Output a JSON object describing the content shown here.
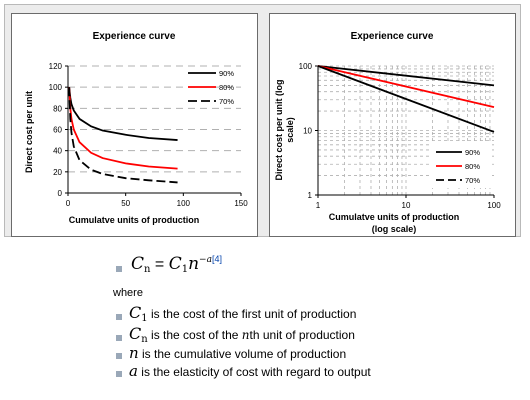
{
  "chart_data": [
    {
      "type": "line",
      "title": "Experience curve",
      "xlabel": "Cumulatve units of production",
      "ylabel": "Direct cost per unit",
      "xlim": [
        0,
        150
      ],
      "ylim": [
        0,
        120
      ],
      "x_ticks": [
        "0",
        "50",
        "100",
        "150"
      ],
      "y_ticks": [
        "0",
        "20",
        "40",
        "60",
        "80",
        "100",
        "120"
      ],
      "grid": "horizontal dashed",
      "legend_position": "top-right",
      "series": [
        {
          "name": "90%",
          "color": "#000000",
          "dash": "solid",
          "x": [
            1,
            2,
            3,
            5,
            10,
            20,
            30,
            50,
            70,
            95
          ],
          "y": [
            100,
            90,
            84,
            78,
            70,
            63,
            59,
            55,
            52,
            50
          ]
        },
        {
          "name": "80%",
          "color": "#ff0000",
          "dash": "solid",
          "x": [
            1,
            2,
            3,
            5,
            10,
            20,
            30,
            50,
            70,
            95
          ],
          "y": [
            100,
            80,
            70,
            60,
            48,
            38,
            33,
            28,
            25,
            23
          ]
        },
        {
          "name": "70%",
          "color": "#000000",
          "dash": "long-dash",
          "x": [
            1,
            2,
            3,
            5,
            10,
            20,
            30,
            50,
            70,
            95
          ],
          "y": [
            100,
            70,
            57,
            44,
            31,
            22,
            18,
            14,
            12,
            10
          ]
        }
      ]
    },
    {
      "type": "line",
      "title": "Experience curve",
      "xlabel": "Cumulatve units of production\n(log scale)",
      "ylabel": "Direct cost per unit (log\nscale)",
      "xscale": "log",
      "yscale": "log",
      "xlim": [
        1,
        100
      ],
      "ylim": [
        1,
        100
      ],
      "x_ticks": [
        "1",
        "10",
        "100"
      ],
      "y_ticks": [
        "1",
        "10",
        "100"
      ],
      "grid": "dashed, both axes",
      "legend_position": "bottom-right",
      "series": [
        {
          "name": "90%",
          "color": "#000000",
          "dash": "solid",
          "x": [
            1,
            100
          ],
          "y": [
            100,
            50
          ]
        },
        {
          "name": "80%",
          "color": "#ff0000",
          "dash": "solid",
          "x": [
            1,
            100
          ],
          "y": [
            100,
            23
          ]
        },
        {
          "name": "70%",
          "color": "#000000",
          "dash": "solid",
          "x": [
            1,
            100
          ],
          "y": [
            100,
            9.5
          ]
        }
      ]
    }
  ],
  "formula": {
    "lhs": "C",
    "lhs_sub": "n",
    "eq": " = ",
    "rhs": "C",
    "rhs_sub": "1",
    "n": "n",
    "exp": "−a",
    "ref": "[4]"
  },
  "where_label": "where",
  "definitions": [
    {
      "sym": "C",
      "sub": "1",
      "text": " is the cost of the first unit of production"
    },
    {
      "sym": "C",
      "sub": "n",
      "text": " is the cost of the ",
      "mid_sym": "n",
      "text2": "th unit of production"
    },
    {
      "sym": "n",
      "sub": "",
      "text": " is the cumulative volume of production"
    },
    {
      "sym": "a",
      "sub": "",
      "text": " is the elasticity of cost with regard to output"
    }
  ]
}
